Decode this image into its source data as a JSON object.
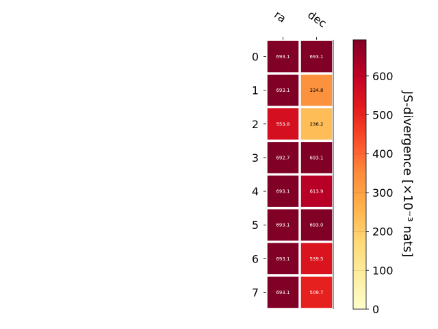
{
  "chart_data": {
    "type": "heatmap",
    "columns": [
      "ra",
      "dec"
    ],
    "rows": [
      "0",
      "1",
      "2",
      "3",
      "4",
      "5",
      "6",
      "7"
    ],
    "values": [
      [
        693.1,
        693.1
      ],
      [
        693.1,
        334.8
      ],
      [
        553.8,
        236.2
      ],
      [
        692.7,
        693.1
      ],
      [
        693.1,
        613.9
      ],
      [
        693.1,
        693.0
      ],
      [
        693.1,
        539.5
      ],
      [
        693.1,
        509.7
      ]
    ],
    "cell_labels": [
      [
        "693.1",
        "693.1"
      ],
      [
        "693.1",
        "334.8"
      ],
      [
        "553.8",
        "236.2"
      ],
      [
        "692.7",
        "693.1"
      ],
      [
        "693.1",
        "613.9"
      ],
      [
        "693.1",
        "693.0"
      ],
      [
        "693.1",
        "539.5"
      ],
      [
        "693.1",
        "509.7"
      ]
    ],
    "colorbar": {
      "label": "JS-divergence [×10⁻³ nats]",
      "min": 0,
      "max": 693.1,
      "ticks": [
        0,
        100,
        200,
        300,
        400,
        500,
        600
      ],
      "tick_labels": [
        "0",
        "100",
        "200",
        "300",
        "400",
        "500",
        "600"
      ],
      "colormap": "YlOrRd"
    },
    "colors": {
      "cell_border": "#ffffff",
      "text_dark_cell": "#ffffff",
      "text_light_cell": "#000000"
    }
  }
}
